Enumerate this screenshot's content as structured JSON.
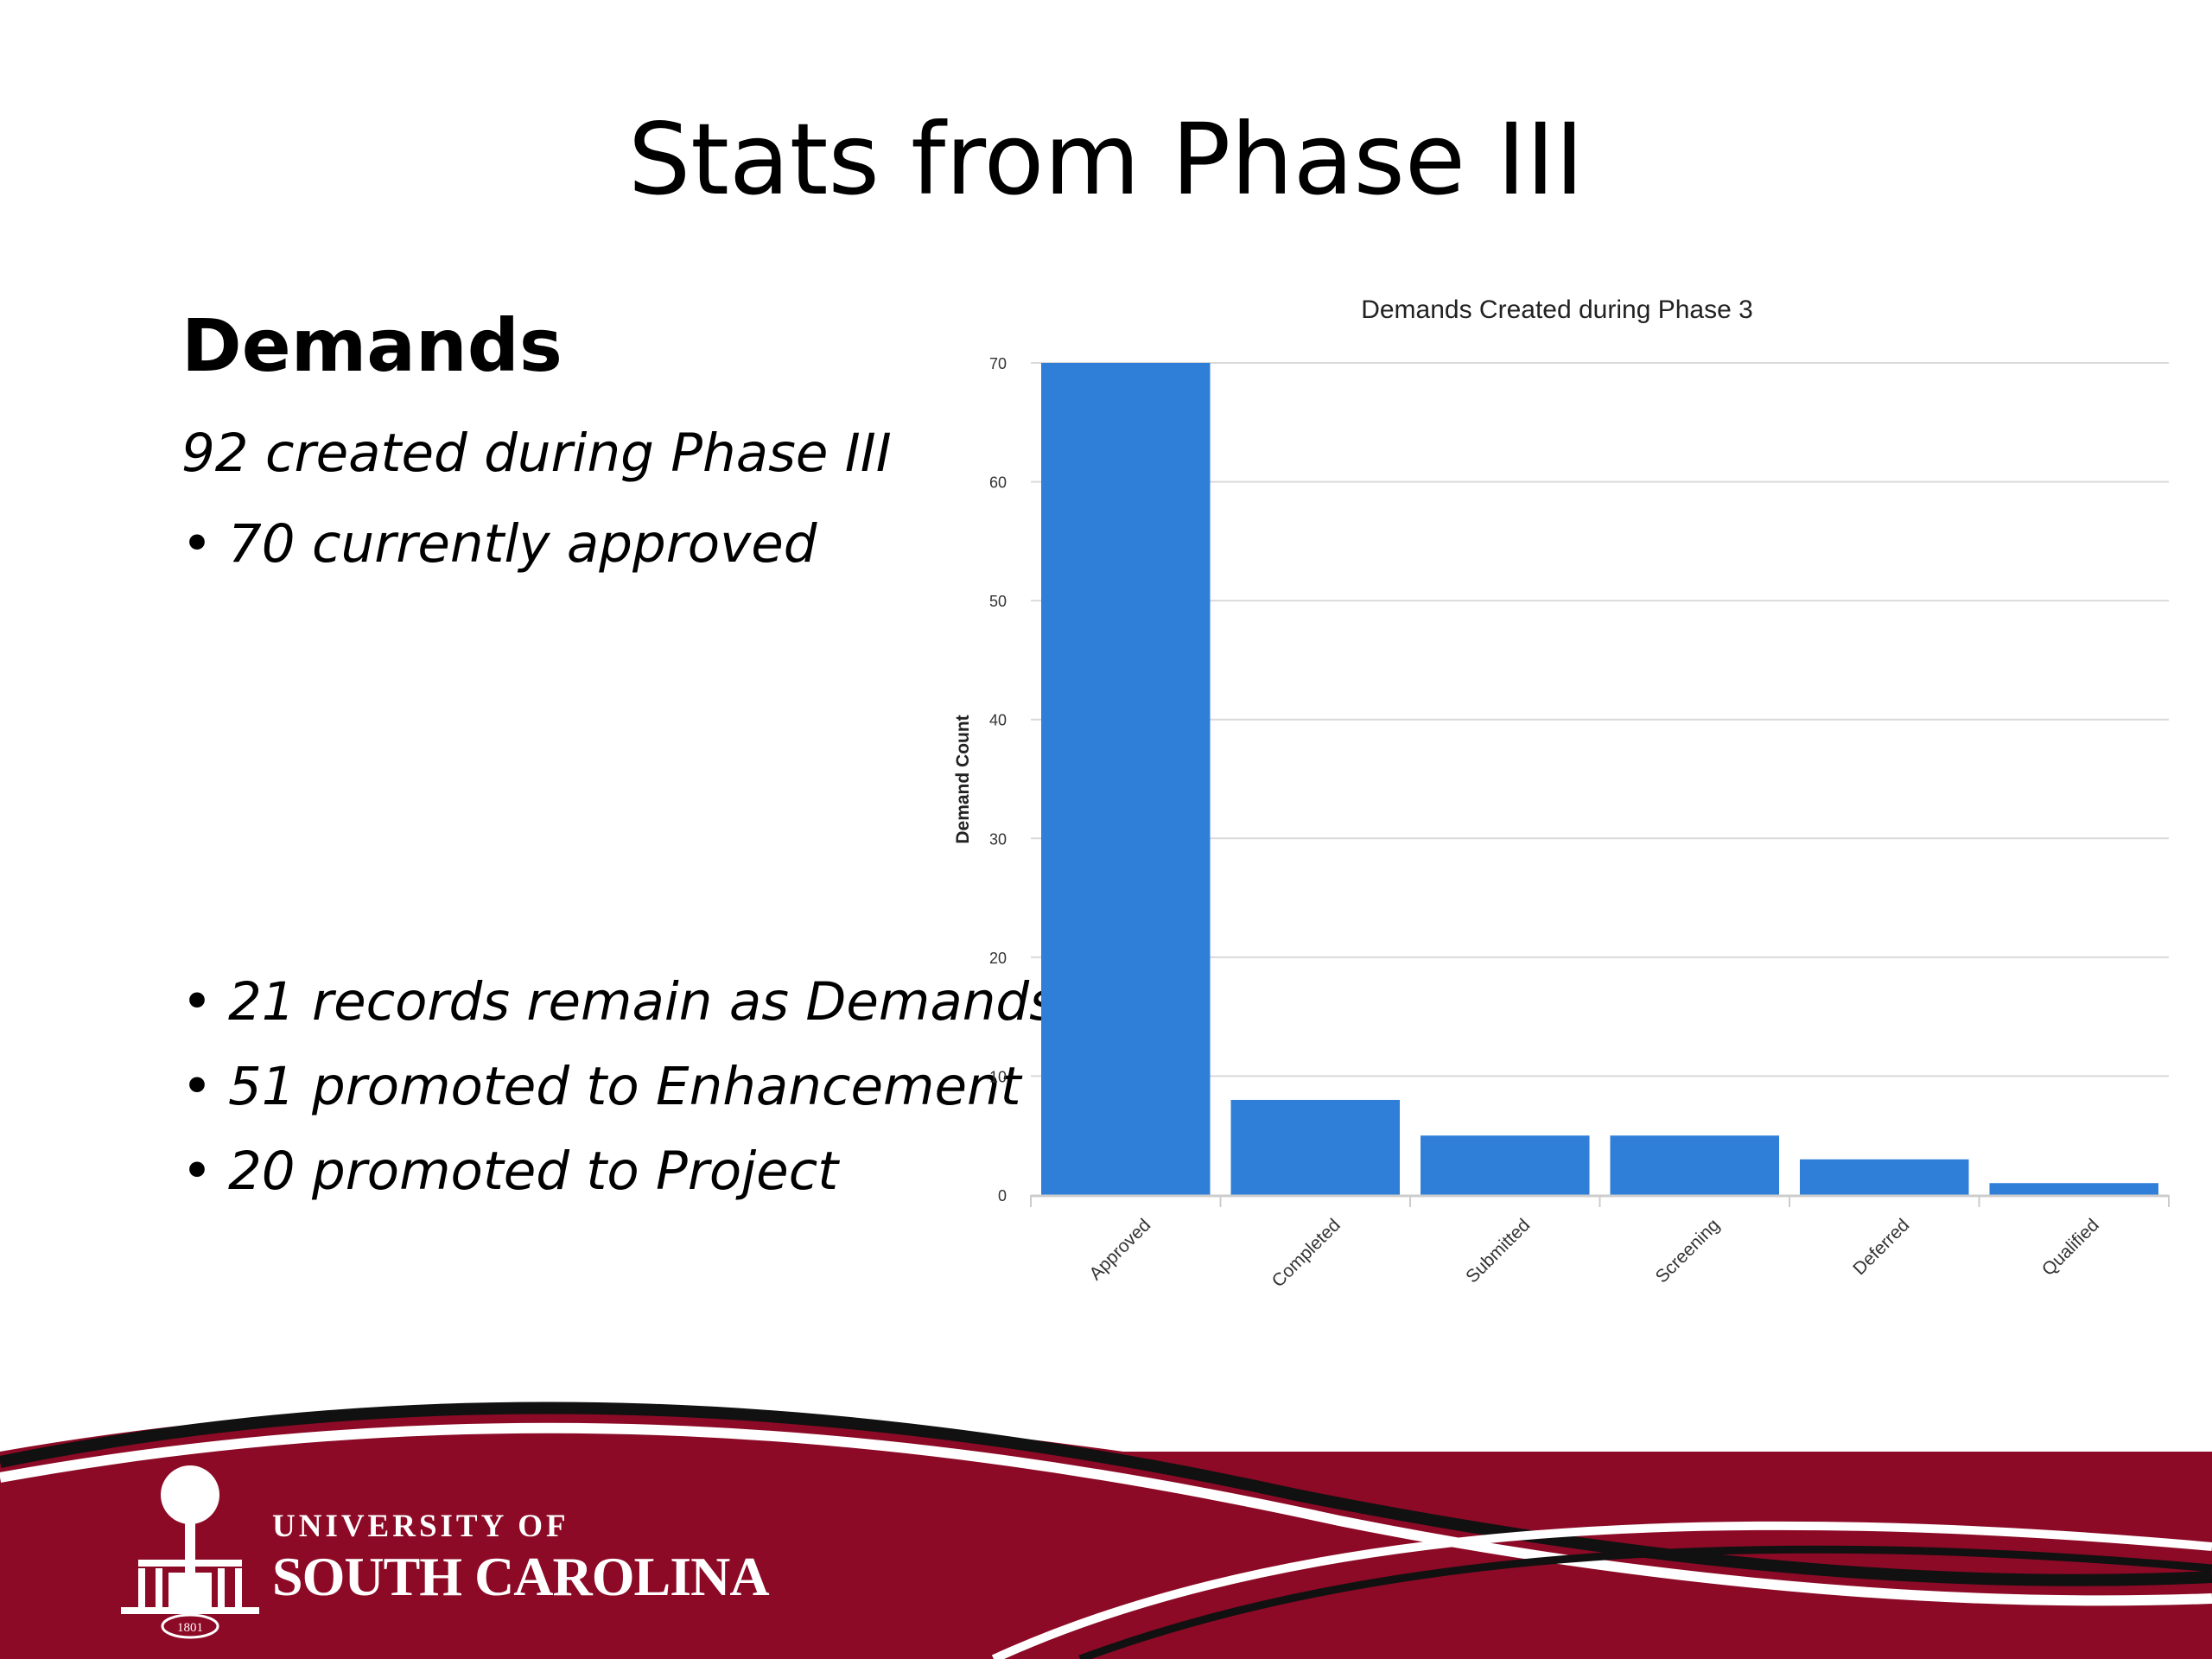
{
  "slide": {
    "title": "Stats from Phase III",
    "heading": "Demands",
    "summary": "92 created during Phase III",
    "bullets_top": [
      "70 currently approved"
    ],
    "bullets_bottom": [
      "21 records remain as Demands",
      "51 promoted to Enhancement",
      "20 promoted to Project"
    ]
  },
  "logo": {
    "line1": "UNIVERSITY OF",
    "line2": "SOUTH CAROLINA",
    "seal_year": "1801"
  },
  "colors": {
    "bar": "#2f7fd9",
    "footer_red": "#8c0a26",
    "grid": "#d9d9d9"
  },
  "chart_data": {
    "type": "bar",
    "title": "Demands Created during Phase 3",
    "xlabel": "",
    "ylabel": "Demand Count",
    "categories": [
      "Approved",
      "Completed",
      "Submitted",
      "Screening",
      "Deferred",
      "Qualified"
    ],
    "values": [
      70,
      8,
      5,
      5,
      3,
      1
    ],
    "ylim": [
      0,
      70
    ],
    "yticks": [
      0,
      10,
      20,
      30,
      40,
      50,
      60,
      70
    ],
    "grid": true,
    "legend": "none"
  }
}
